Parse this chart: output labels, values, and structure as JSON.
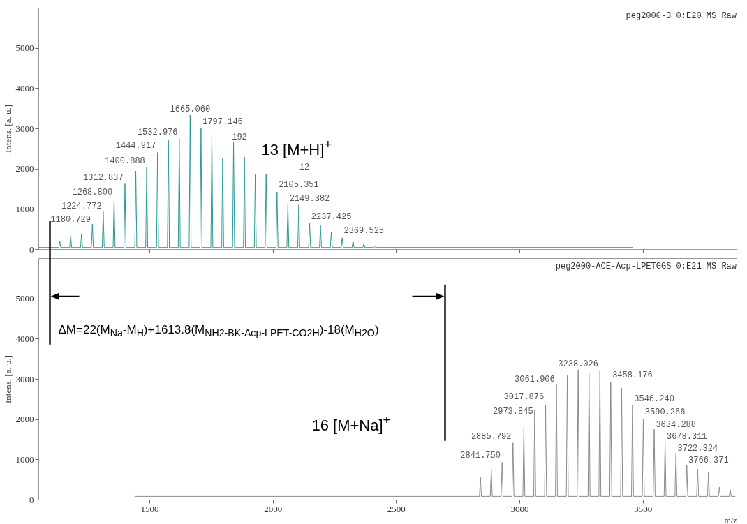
{
  "chart_data": [
    {
      "type": "line",
      "title": "peg2000-3 0:E20 MS Raw",
      "ylabel": "Intens. [a. u.]",
      "xlim": [
        1050,
        3880
      ],
      "ylim": [
        0,
        6000
      ],
      "xticks": [
        1500,
        2000,
        2500,
        3000,
        3500
      ],
      "yticks": [
        0,
        1000,
        2000,
        3000,
        4000,
        5000
      ],
      "tick_labels": "y",
      "series": [
        {
          "color": "#2a9a96",
          "x": [
            1050,
            1132.7,
            1136.7,
            1140.7,
            1176.7,
            1180.7,
            1184.7,
            1220.8,
            1224.8,
            1228.8,
            1264.8,
            1268.8,
            1272.8,
            1308.8,
            1312.8,
            1316.8,
            1352.9,
            1356.9,
            1360.9,
            1396.9,
            1400.9,
            1404.9,
            1440.9,
            1444.9,
            1448.9,
            1485,
            1489,
            1493,
            1529,
            1533,
            1537,
            1573,
            1577,
            1581,
            1617,
            1621,
            1625,
            1661.1,
            1665.1,
            1669.1,
            1705.1,
            1709.1,
            1713.1,
            1749.1,
            1753.1,
            1757.1,
            1793.1,
            1797.1,
            1801.1,
            1837.2,
            1841.2,
            1845.2,
            1881.2,
            1885.2,
            1889.2,
            1925.2,
            1929.2,
            1933.2,
            1969.2,
            1973.2,
            1977.2,
            2013.3,
            2017.3,
            2021.3,
            2057.3,
            2061.3,
            2065.3,
            2101.4,
            2105.4,
            2109.4,
            2145.4,
            2149.4,
            2153.4,
            2189.4,
            2193.4,
            2197.4,
            2233.4,
            2237.4,
            2241.4,
            2277.5,
            2281.5,
            2285.5,
            2321.5,
            2325.5,
            2329.5,
            2365.5,
            2369.5,
            2373.5,
            2409.6,
            2413.6,
            2417.6,
            3460
          ],
          "values": [
            40,
            40,
            200,
            40,
            40,
            330,
            40,
            40,
            380,
            40,
            40,
            620,
            40,
            40,
            950,
            40,
            40,
            1260,
            40,
            40,
            1640,
            40,
            40,
            1940,
            40,
            40,
            2040,
            40,
            40,
            2400,
            40,
            40,
            2700,
            40,
            40,
            2750,
            40,
            40,
            3330,
            40,
            40,
            3000,
            40,
            40,
            2850,
            40,
            40,
            2270,
            40,
            40,
            2650,
            40,
            40,
            2290,
            40,
            40,
            1870,
            40,
            40,
            1870,
            40,
            40,
            1420,
            40,
            40,
            1100,
            40,
            40,
            1100,
            40,
            40,
            650,
            40,
            40,
            590,
            40,
            40,
            420,
            40,
            40,
            280,
            40,
            40,
            210,
            40,
            40,
            140,
            40,
            40,
            60,
            40,
            40
          ]
        }
      ],
      "annotations": [
        "1180.729",
        "1224.772",
        "1268.800",
        "1312.837",
        "1400.888",
        "1444.917",
        "1532.976",
        "1665.060",
        "1797.146",
        "192",
        "12",
        "2105.351",
        "2149.382",
        "2237.425",
        "2369.525",
        "13 [M+H]$^{+}$"
      ]
    },
    {
      "type": "line",
      "title": "peg2000-ACE-Acp-LPETGGS 0:E21 MS Raw",
      "xlabel": "m/z",
      "ylabel": "Intens. [a. u.]",
      "xlim": [
        1050,
        3880
      ],
      "ylim": [
        0,
        6000
      ],
      "xticks": [
        1500,
        2000,
        2500,
        3000,
        3500
      ],
      "yticks": [
        0,
        1000,
        2000,
        3000,
        4000,
        5000
      ],
      "series": [
        {
          "color": "#8a8a8a",
          "x": [
            1440,
            2837.8,
            2841.8,
            2845.8,
            2881.8,
            2885.8,
            2889.8,
            2925.8,
            2929.8,
            2933.8,
            2969.8,
            2973.8,
            2977.8,
            3013.9,
            3017.9,
            3021.9,
            3057.9,
            3061.9,
            3065.9,
            3101.9,
            3105.9,
            3109.9,
            3145.9,
            3149.9,
            3153.9,
            3190,
            3194,
            3198,
            3234,
            3238,
            3242,
            3278.1,
            3282.1,
            3286.1,
            3322.1,
            3326.1,
            3330.1,
            3366.1,
            3370.1,
            3374.1,
            3410.2,
            3414.2,
            3418.2,
            3454.2,
            3458.2,
            3462.2,
            3498.2,
            3502.2,
            3506.2,
            3542.2,
            3546.2,
            3550.2,
            3586.3,
            3590.3,
            3594.3,
            3630.3,
            3634.3,
            3638.3,
            3674.3,
            3678.3,
            3682.3,
            3718.3,
            3722.3,
            3726.3,
            3762.4,
            3766.4,
            3770.4,
            3806.4,
            3810.4,
            3814.4,
            3850.4,
            3854.4,
            3858.4,
            3875
          ],
          "values": [
            80,
            80,
            560,
            80,
            80,
            760,
            80,
            80,
            930,
            80,
            80,
            1410,
            80,
            80,
            1780,
            80,
            80,
            2230,
            80,
            80,
            2350,
            80,
            80,
            2860,
            80,
            80,
            3080,
            80,
            80,
            3230,
            80,
            80,
            3130,
            80,
            80,
            3200,
            80,
            80,
            2910,
            80,
            80,
            2770,
            80,
            80,
            2350,
            80,
            80,
            2010,
            80,
            80,
            1750,
            80,
            80,
            1440,
            80,
            80,
            1160,
            80,
            80,
            850,
            80,
            80,
            760,
            80,
            80,
            680,
            80,
            80,
            310,
            80,
            80,
            250,
            80,
            80
          ]
        }
      ],
      "annotations": [
        "2841.750",
        "2885.792",
        "2973.845",
        "3017.876",
        "3061.906",
        "3238.026",
        "3458.176",
        "3546.240",
        "3590.266",
        "3634.288",
        "3678.311",
        "3722.324",
        "3766.371",
        "ΔM=22(M$_{Na}$-M$_{H}$)+1613.8(M$_{NH2-BK-Acp-LPET-CO2H}$)-18(M$_{H2O}$)",
        "16 [M+Na]$^{+}$"
      ]
    }
  ]
}
